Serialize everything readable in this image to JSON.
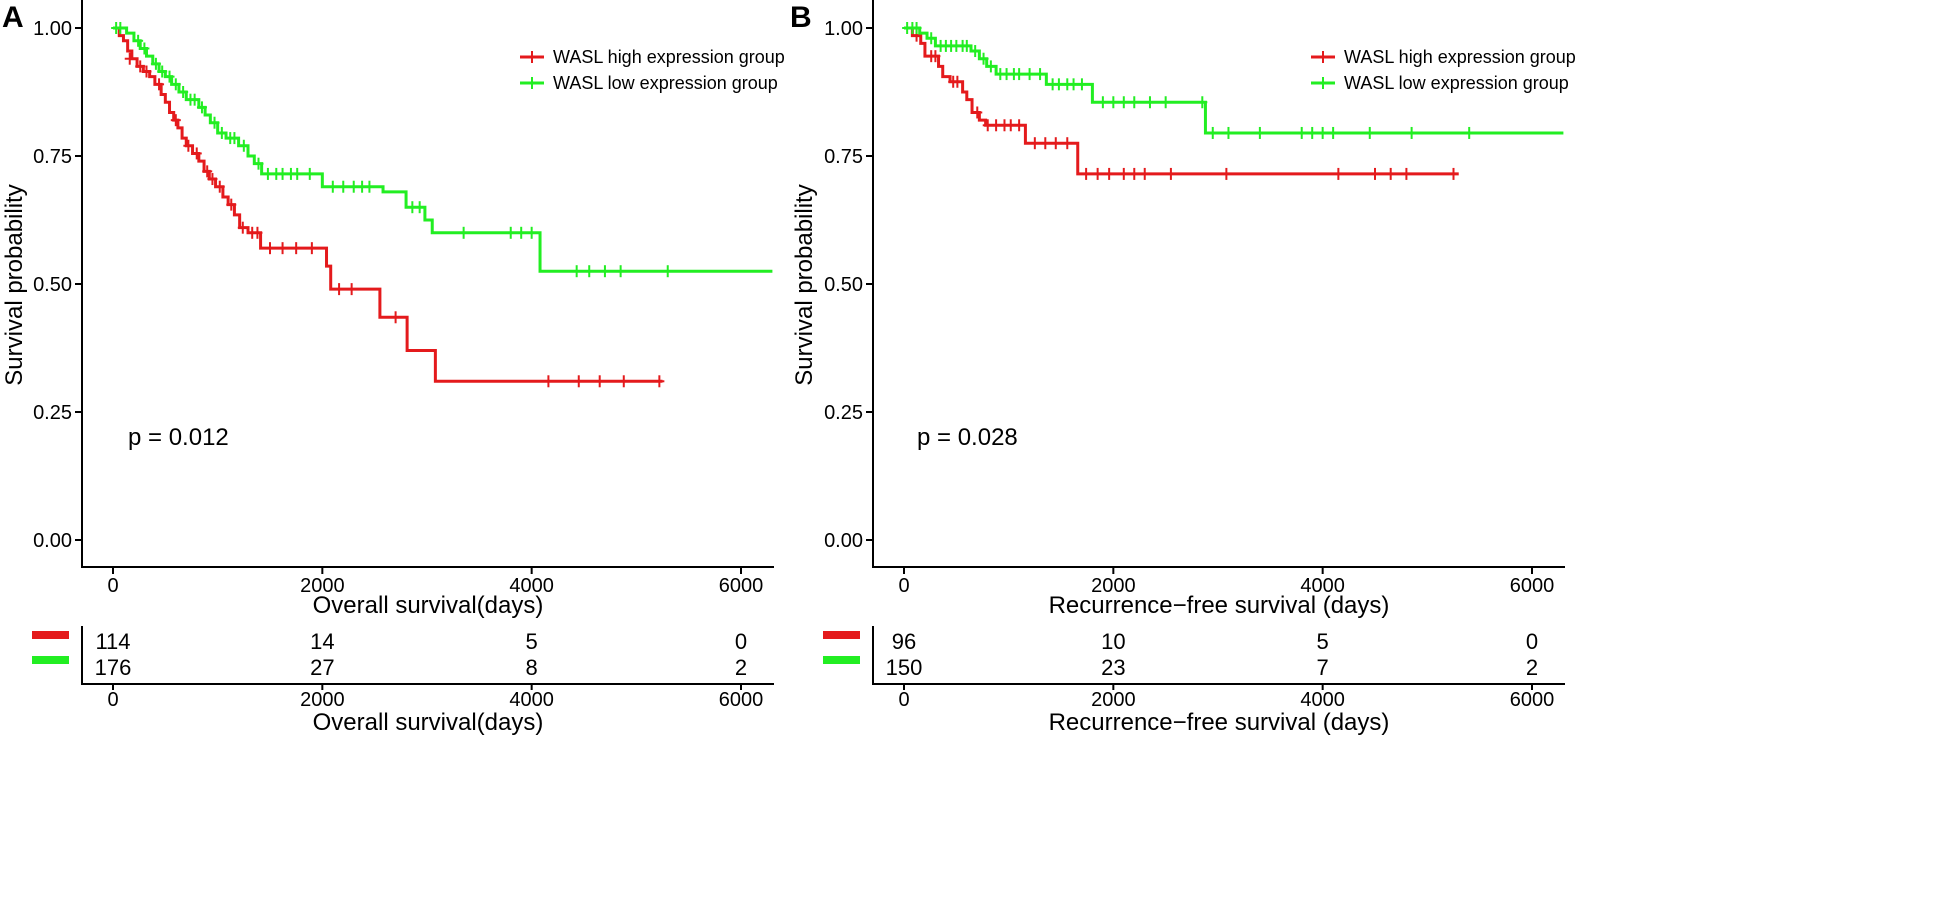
{
  "chart_data": [
    {
      "type": "line",
      "panel_label": "A",
      "title": "",
      "xlabel": "Overall survival(days)",
      "ylabel": "Survival probability",
      "xlim": [
        -150,
        6300
      ],
      "ylim": [
        -0.05,
        1.05
      ],
      "x_ticks": [
        "0",
        "2000",
        "4000",
        "6000"
      ],
      "x_tick_values": [
        0,
        2000,
        4000,
        6000
      ],
      "y_ticks": [
        "0.00",
        "0.25",
        "0.50",
        "0.75",
        "1.00"
      ],
      "y_tick_values": [
        0,
        0.25,
        0.5,
        0.75,
        1.0
      ],
      "legend": [
        "WASL high expression group",
        "WASL low expression group"
      ],
      "legend_position": "top-right",
      "p_value": "p = 0.012",
      "series": [
        {
          "name": "WASL high expression group",
          "color": "#e41a1c",
          "steps": [
            [
              0,
              1.0
            ],
            [
              60,
              0.985
            ],
            [
              100,
              0.975
            ],
            [
              140,
              0.955
            ],
            [
              180,
              0.94
            ],
            [
              230,
              0.925
            ],
            [
              290,
              0.915
            ],
            [
              350,
              0.905
            ],
            [
              400,
              0.89
            ],
            [
              460,
              0.87
            ],
            [
              500,
              0.855
            ],
            [
              540,
              0.835
            ],
            [
              580,
              0.82
            ],
            [
              620,
              0.805
            ],
            [
              660,
              0.785
            ],
            [
              700,
              0.77
            ],
            [
              760,
              0.755
            ],
            [
              820,
              0.74
            ],
            [
              870,
              0.72
            ],
            [
              920,
              0.705
            ],
            [
              980,
              0.69
            ],
            [
              1050,
              0.67
            ],
            [
              1100,
              0.655
            ],
            [
              1160,
              0.635
            ],
            [
              1210,
              0.61
            ],
            [
              1290,
              0.6
            ],
            [
              1410,
              0.57
            ],
            [
              2040,
              0.535
            ],
            [
              2080,
              0.49
            ],
            [
              2550,
              0.435
            ],
            [
              2810,
              0.37
            ],
            [
              3080,
              0.31
            ],
            [
              5250,
              0.31
            ]
          ],
          "censors": [
            [
              160,
              0.94
            ],
            [
              260,
              0.925
            ],
            [
              320,
              0.915
            ],
            [
              440,
              0.89
            ],
            [
              600,
              0.82
            ],
            [
              720,
              0.77
            ],
            [
              800,
              0.755
            ],
            [
              900,
              0.72
            ],
            [
              950,
              0.705
            ],
            [
              1020,
              0.69
            ],
            [
              1130,
              0.655
            ],
            [
              1240,
              0.61
            ],
            [
              1330,
              0.6
            ],
            [
              1380,
              0.6
            ],
            [
              1500,
              0.57
            ],
            [
              1620,
              0.57
            ],
            [
              1750,
              0.57
            ],
            [
              1900,
              0.57
            ],
            [
              2160,
              0.49
            ],
            [
              2280,
              0.49
            ],
            [
              2700,
              0.435
            ],
            [
              4160,
              0.31
            ],
            [
              4450,
              0.31
            ],
            [
              4650,
              0.31
            ],
            [
              4880,
              0.31
            ],
            [
              5220,
              0.31
            ]
          ],
          "at_risk": [
            114,
            14,
            5,
            0
          ]
        },
        {
          "name": "WASL low expression group",
          "color": "#22ee22",
          "steps": [
            [
              0,
              1.0
            ],
            [
              130,
              0.99
            ],
            [
              200,
              0.975
            ],
            [
              260,
              0.96
            ],
            [
              320,
              0.945
            ],
            [
              380,
              0.93
            ],
            [
              440,
              0.915
            ],
            [
              500,
              0.905
            ],
            [
              560,
              0.89
            ],
            [
              630,
              0.875
            ],
            [
              700,
              0.86
            ],
            [
              820,
              0.845
            ],
            [
              880,
              0.83
            ],
            [
              930,
              0.815
            ],
            [
              1000,
              0.795
            ],
            [
              1080,
              0.785
            ],
            [
              1200,
              0.77
            ],
            [
              1290,
              0.75
            ],
            [
              1350,
              0.735
            ],
            [
              1420,
              0.715
            ],
            [
              2000,
              0.69
            ],
            [
              2580,
              0.68
            ],
            [
              2800,
              0.65
            ],
            [
              2980,
              0.625
            ],
            [
              3050,
              0.6
            ],
            [
              4080,
              0.525
            ],
            [
              6300,
              0.525
            ]
          ],
          "censors": [
            [
              30,
              1.0
            ],
            [
              70,
              1.0
            ],
            [
              240,
              0.975
            ],
            [
              300,
              0.96
            ],
            [
              410,
              0.93
            ],
            [
              470,
              0.915
            ],
            [
              540,
              0.905
            ],
            [
              600,
              0.89
            ],
            [
              670,
              0.875
            ],
            [
              740,
              0.86
            ],
            [
              780,
              0.86
            ],
            [
              850,
              0.845
            ],
            [
              970,
              0.815
            ],
            [
              1040,
              0.795
            ],
            [
              1120,
              0.785
            ],
            [
              1160,
              0.785
            ],
            [
              1250,
              0.77
            ],
            [
              1390,
              0.735
            ],
            [
              1480,
              0.715
            ],
            [
              1560,
              0.715
            ],
            [
              1620,
              0.715
            ],
            [
              1700,
              0.715
            ],
            [
              1760,
              0.715
            ],
            [
              1880,
              0.715
            ],
            [
              2100,
              0.69
            ],
            [
              2200,
              0.69
            ],
            [
              2300,
              0.69
            ],
            [
              2380,
              0.69
            ],
            [
              2450,
              0.69
            ],
            [
              2860,
              0.65
            ],
            [
              2930,
              0.65
            ],
            [
              3350,
              0.6
            ],
            [
              3800,
              0.6
            ],
            [
              3900,
              0.6
            ],
            [
              4000,
              0.6
            ],
            [
              4430,
              0.525
            ],
            [
              4550,
              0.525
            ],
            [
              4700,
              0.525
            ],
            [
              4850,
              0.525
            ],
            [
              5300,
              0.525
            ]
          ],
          "at_risk": [
            176,
            27,
            8,
            2
          ]
        }
      ],
      "risk_table": {
        "x_ticks": [
          "0",
          "2000",
          "4000",
          "6000"
        ],
        "xlabel": "Overall survival(days)"
      }
    },
    {
      "type": "line",
      "panel_label": "B",
      "title": "",
      "xlabel": "Recurrence−free survival (days)",
      "ylabel": "Survival probability",
      "xlim": [
        -150,
        6300
      ],
      "ylim": [
        -0.05,
        1.05
      ],
      "x_ticks": [
        "0",
        "2000",
        "4000",
        "6000"
      ],
      "x_tick_values": [
        0,
        2000,
        4000,
        6000
      ],
      "y_ticks": [
        "0.00",
        "0.25",
        "0.50",
        "0.75",
        "1.00"
      ],
      "y_tick_values": [
        0,
        0.25,
        0.5,
        0.75,
        1.0
      ],
      "legend": [
        "WASL high expression group",
        "WASL low expression group"
      ],
      "legend_position": "top-right",
      "p_value": "p = 0.028",
      "series": [
        {
          "name": "WASL high expression group",
          "color": "#e41a1c",
          "steps": [
            [
              0,
              1.0
            ],
            [
              80,
              0.985
            ],
            [
              160,
              0.97
            ],
            [
              200,
              0.945
            ],
            [
              330,
              0.925
            ],
            [
              370,
              0.905
            ],
            [
              440,
              0.895
            ],
            [
              560,
              0.875
            ],
            [
              600,
              0.86
            ],
            [
              650,
              0.835
            ],
            [
              720,
              0.82
            ],
            [
              780,
              0.81
            ],
            [
              1160,
              0.775
            ],
            [
              1660,
              0.715
            ],
            [
              5300,
              0.715
            ]
          ],
          "censors": [
            [
              120,
              0.985
            ],
            [
              260,
              0.945
            ],
            [
              300,
              0.945
            ],
            [
              470,
              0.895
            ],
            [
              510,
              0.895
            ],
            [
              700,
              0.835
            ],
            [
              800,
              0.81
            ],
            [
              880,
              0.81
            ],
            [
              960,
              0.81
            ],
            [
              1020,
              0.81
            ],
            [
              1100,
              0.81
            ],
            [
              1250,
              0.775
            ],
            [
              1350,
              0.775
            ],
            [
              1450,
              0.775
            ],
            [
              1560,
              0.775
            ],
            [
              1740,
              0.715
            ],
            [
              1850,
              0.715
            ],
            [
              1960,
              0.715
            ],
            [
              2100,
              0.715
            ],
            [
              2200,
              0.715
            ],
            [
              2300,
              0.715
            ],
            [
              2550,
              0.715
            ],
            [
              3080,
              0.715
            ],
            [
              4150,
              0.715
            ],
            [
              4500,
              0.715
            ],
            [
              4650,
              0.715
            ],
            [
              4800,
              0.715
            ],
            [
              5250,
              0.715
            ]
          ],
          "at_risk": [
            96,
            10,
            5,
            0
          ]
        },
        {
          "name": "WASL low expression group",
          "color": "#22ee22",
          "steps": [
            [
              0,
              1.0
            ],
            [
              150,
              0.99
            ],
            [
              220,
              0.98
            ],
            [
              300,
              0.965
            ],
            [
              640,
              0.955
            ],
            [
              720,
              0.94
            ],
            [
              790,
              0.925
            ],
            [
              880,
              0.91
            ],
            [
              1360,
              0.89
            ],
            [
              1800,
              0.855
            ],
            [
              2880,
              0.795
            ],
            [
              6300,
              0.795
            ]
          ],
          "censors": [
            [
              30,
              1.0
            ],
            [
              80,
              1.0
            ],
            [
              120,
              1.0
            ],
            [
              260,
              0.98
            ],
            [
              350,
              0.965
            ],
            [
              400,
              0.965
            ],
            [
              450,
              0.965
            ],
            [
              500,
              0.965
            ],
            [
              560,
              0.965
            ],
            [
              600,
              0.965
            ],
            [
              680,
              0.955
            ],
            [
              760,
              0.94
            ],
            [
              830,
              0.925
            ],
            [
              920,
              0.91
            ],
            [
              980,
              0.91
            ],
            [
              1050,
              0.91
            ],
            [
              1100,
              0.91
            ],
            [
              1200,
              0.91
            ],
            [
              1300,
              0.91
            ],
            [
              1420,
              0.89
            ],
            [
              1480,
              0.89
            ],
            [
              1560,
              0.89
            ],
            [
              1620,
              0.89
            ],
            [
              1700,
              0.89
            ],
            [
              1900,
              0.855
            ],
            [
              2000,
              0.855
            ],
            [
              2100,
              0.855
            ],
            [
              2200,
              0.855
            ],
            [
              2350,
              0.855
            ],
            [
              2500,
              0.855
            ],
            [
              2850,
              0.855
            ],
            [
              2950,
              0.795
            ],
            [
              3100,
              0.795
            ],
            [
              3400,
              0.795
            ],
            [
              3800,
              0.795
            ],
            [
              3900,
              0.795
            ],
            [
              4000,
              0.795
            ],
            [
              4100,
              0.795
            ],
            [
              4450,
              0.795
            ],
            [
              4850,
              0.795
            ],
            [
              5400,
              0.795
            ]
          ],
          "at_risk": [
            150,
            23,
            7,
            2
          ]
        }
      ],
      "risk_table": {
        "x_ticks": [
          "0",
          "2000",
          "4000",
          "6000"
        ],
        "xlabel": "Recurrence−free survival (days)"
      }
    }
  ]
}
